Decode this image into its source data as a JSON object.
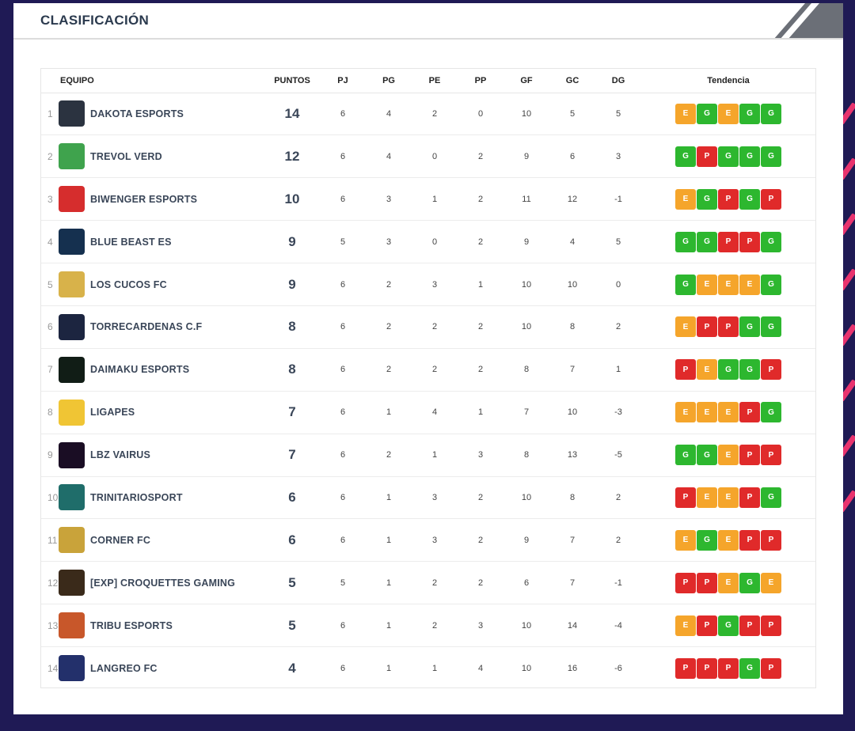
{
  "header": {
    "title": "CLASIFICACIÓN"
  },
  "colors": {
    "win": "#2db72f",
    "draw": "#f5a52b",
    "loss": "#e02a2a",
    "background": "#1f1a55"
  },
  "table": {
    "columns": {
      "team": "EQUIPO",
      "points": "PUNTOS",
      "played": "PJ",
      "won": "PG",
      "drawn": "PE",
      "lost": "PP",
      "goals_for": "GF",
      "goals_against": "GC",
      "goal_diff": "DG",
      "trend": "Tendencia"
    },
    "rows": [
      {
        "pos": "1",
        "team": "DAKOTA ESPORTS",
        "logo_icon": "dakota-logo-icon",
        "logo_color": "#2b3340",
        "points": "14",
        "pj": "6",
        "pg": "4",
        "pe": "2",
        "pp": "0",
        "gf": "10",
        "gc": "5",
        "dg": "5",
        "trend": [
          "E",
          "G",
          "E",
          "G",
          "G"
        ]
      },
      {
        "pos": "2",
        "team": "TREVOL VERD",
        "logo_icon": "clover-logo-icon",
        "logo_color": "#3fa34d",
        "points": "12",
        "pj": "6",
        "pg": "4",
        "pe": "0",
        "pp": "2",
        "gf": "9",
        "gc": "6",
        "dg": "3",
        "trend": [
          "G",
          "P",
          "G",
          "G",
          "G"
        ]
      },
      {
        "pos": "3",
        "team": "BIWENGER ESPORTS",
        "logo_icon": "biwenger-logo-icon",
        "logo_color": "#d62d2d",
        "points": "10",
        "pj": "6",
        "pg": "3",
        "pe": "1",
        "pp": "2",
        "gf": "11",
        "gc": "12",
        "dg": "-1",
        "trend": [
          "E",
          "G",
          "P",
          "G",
          "P"
        ]
      },
      {
        "pos": "4",
        "team": "BLUE BEAST ES",
        "logo_icon": "blue-beast-logo-icon",
        "logo_color": "#15304f",
        "points": "9",
        "pj": "5",
        "pg": "3",
        "pe": "0",
        "pp": "2",
        "gf": "9",
        "gc": "4",
        "dg": "5",
        "trend": [
          "G",
          "G",
          "P",
          "P",
          "G"
        ]
      },
      {
        "pos": "5",
        "team": "LOS CUCOS FC",
        "logo_icon": "cucos-logo-icon",
        "logo_color": "#d8b24a",
        "points": "9",
        "pj": "6",
        "pg": "2",
        "pe": "3",
        "pp": "1",
        "gf": "10",
        "gc": "10",
        "dg": "0",
        "trend": [
          "G",
          "E",
          "E",
          "E",
          "G"
        ]
      },
      {
        "pos": "6",
        "team": "TORRECARDENAS C.F",
        "logo_icon": "torrecardenas-logo-icon",
        "logo_color": "#1c2540",
        "points": "8",
        "pj": "6",
        "pg": "2",
        "pe": "2",
        "pp": "2",
        "gf": "10",
        "gc": "8",
        "dg": "2",
        "trend": [
          "E",
          "P",
          "P",
          "G",
          "G"
        ]
      },
      {
        "pos": "7",
        "team": "DAIMAKU ESPORTS",
        "logo_icon": "daimaku-logo-icon",
        "logo_color": "#111d16",
        "points": "8",
        "pj": "6",
        "pg": "2",
        "pe": "2",
        "pp": "2",
        "gf": "8",
        "gc": "7",
        "dg": "1",
        "trend": [
          "P",
          "E",
          "G",
          "G",
          "P"
        ]
      },
      {
        "pos": "8",
        "team": "LIGAPES",
        "logo_icon": "ligapes-logo-icon",
        "logo_color": "#f0c534",
        "points": "7",
        "pj": "6",
        "pg": "1",
        "pe": "4",
        "pp": "1",
        "gf": "7",
        "gc": "10",
        "dg": "-3",
        "trend": [
          "E",
          "E",
          "E",
          "P",
          "G"
        ]
      },
      {
        "pos": "9",
        "team": "LBZ VAIRUS",
        "logo_icon": "lbz-vairus-logo-icon",
        "logo_color": "#1a0d24",
        "points": "7",
        "pj": "6",
        "pg": "2",
        "pe": "1",
        "pp": "3",
        "gf": "8",
        "gc": "13",
        "dg": "-5",
        "trend": [
          "G",
          "G",
          "E",
          "P",
          "P"
        ]
      },
      {
        "pos": "10",
        "team": "TRINITARIOSPORT",
        "logo_icon": "trinitario-logo-icon",
        "logo_color": "#1f6d6a",
        "points": "6",
        "pj": "6",
        "pg": "1",
        "pe": "3",
        "pp": "2",
        "gf": "10",
        "gc": "8",
        "dg": "2",
        "trend": [
          "P",
          "E",
          "E",
          "P",
          "G"
        ]
      },
      {
        "pos": "11",
        "team": "CORNER FC",
        "logo_icon": "corner-logo-icon",
        "logo_color": "#c9a33a",
        "points": "6",
        "pj": "6",
        "pg": "1",
        "pe": "3",
        "pp": "2",
        "gf": "9",
        "gc": "7",
        "dg": "2",
        "trend": [
          "E",
          "G",
          "E",
          "P",
          "P"
        ]
      },
      {
        "pos": "12",
        "team": "[EXP] CROQUETTES GAMING",
        "logo_icon": "croquettes-logo-icon",
        "logo_color": "#3a2a1a",
        "points": "5",
        "pj": "5",
        "pg": "1",
        "pe": "2",
        "pp": "2",
        "gf": "6",
        "gc": "7",
        "dg": "-1",
        "trend": [
          "P",
          "P",
          "E",
          "G",
          "E"
        ]
      },
      {
        "pos": "13",
        "team": "TRIBU ESPORTS",
        "logo_icon": "tribu-logo-icon",
        "logo_color": "#c8572a",
        "points": "5",
        "pj": "6",
        "pg": "1",
        "pe": "2",
        "pp": "3",
        "gf": "10",
        "gc": "14",
        "dg": "-4",
        "trend": [
          "E",
          "P",
          "G",
          "P",
          "P"
        ]
      },
      {
        "pos": "14",
        "team": "LANGREO FC",
        "logo_icon": "langreo-logo-icon",
        "logo_color": "#23306b",
        "points": "4",
        "pj": "6",
        "pg": "1",
        "pe": "1",
        "pp": "4",
        "gf": "10",
        "gc": "16",
        "dg": "-6",
        "trend": [
          "P",
          "P",
          "P",
          "G",
          "P"
        ]
      }
    ]
  }
}
